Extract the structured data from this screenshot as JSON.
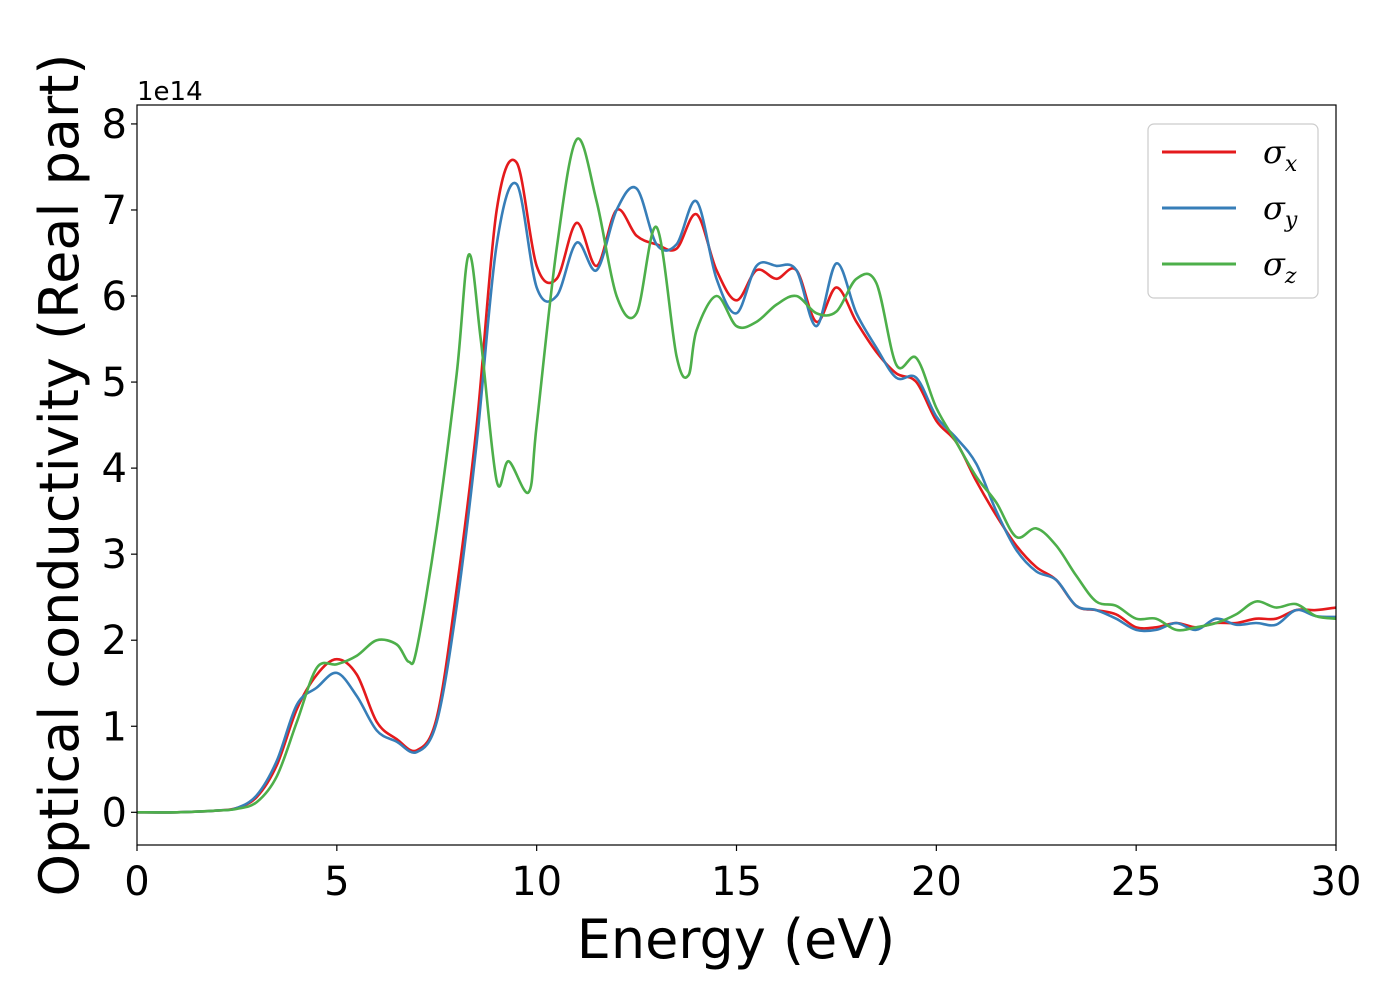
{
  "chart_data": {
    "type": "line",
    "xlabel": "Energy (eV)",
    "ylabel": "Optical conductivity (Real part)",
    "y_offset_label": "1e14",
    "y_scale_exponent": 14,
    "xlim": [
      0,
      30
    ],
    "ylim": [
      -0.38,
      8.22
    ],
    "x_ticks": [
      0,
      5,
      10,
      15,
      20,
      25,
      30
    ],
    "x_tick_labels": [
      "0",
      "5",
      "10",
      "15",
      "20",
      "25",
      "30"
    ],
    "y_ticks": [
      0,
      1,
      2,
      3,
      4,
      5,
      6,
      7,
      8
    ],
    "y_tick_labels": [
      "0",
      "1",
      "2",
      "3",
      "4",
      "5",
      "6",
      "7",
      "8"
    ],
    "grid": false,
    "legend_position": "top-right",
    "series": [
      {
        "name": "σx",
        "base": "σ",
        "sub": "x",
        "color": "#e41a1c",
        "x": [
          0,
          1,
          2,
          2.5,
          3,
          3.5,
          4,
          4.5,
          5,
          5.5,
          6,
          6.5,
          7,
          7.5,
          8,
          8.5,
          9,
          9.5,
          10,
          10.5,
          11,
          11.5,
          12,
          12.5,
          13,
          13.5,
          14,
          14.5,
          15,
          15.5,
          16,
          16.5,
          17,
          17.5,
          18,
          18.5,
          19,
          19.5,
          20,
          20.5,
          21,
          21.5,
          22,
          22.5,
          23,
          23.5,
          24,
          24.5,
          25,
          25.5,
          26,
          26.5,
          27,
          27.5,
          28,
          28.5,
          29,
          29.5,
          30
        ],
        "values": [
          0,
          0,
          0.02,
          0.05,
          0.18,
          0.55,
          1.2,
          1.6,
          1.78,
          1.6,
          1.05,
          0.85,
          0.72,
          1.1,
          2.6,
          4.5,
          7.0,
          7.55,
          6.35,
          6.2,
          6.85,
          6.35,
          7.0,
          6.7,
          6.6,
          6.55,
          6.95,
          6.3,
          5.95,
          6.3,
          6.2,
          6.3,
          5.7,
          6.1,
          5.7,
          5.35,
          5.1,
          5.0,
          4.55,
          4.3,
          3.85,
          3.45,
          3.1,
          2.85,
          2.7,
          2.4,
          2.35,
          2.3,
          2.15,
          2.15,
          2.2,
          2.15,
          2.2,
          2.2,
          2.25,
          2.25,
          2.35,
          2.35,
          2.38
        ]
      },
      {
        "name": "σy",
        "base": "σ",
        "sub": "y",
        "color": "#377eb8",
        "x": [
          0,
          1,
          2,
          2.5,
          3,
          3.5,
          4,
          4.5,
          5,
          5.5,
          6,
          6.5,
          7,
          7.5,
          8,
          8.5,
          9,
          9.5,
          10,
          10.5,
          11,
          11.5,
          12,
          12.5,
          13,
          13.5,
          14,
          14.5,
          15,
          15.5,
          16,
          16.5,
          17,
          17.5,
          18,
          18.5,
          19,
          19.5,
          20,
          20.5,
          21,
          21.5,
          22,
          22.5,
          23,
          23.5,
          24,
          24.5,
          25,
          25.5,
          26,
          26.5,
          27,
          27.5,
          28,
          28.5,
          29,
          29.5,
          30
        ],
        "values": [
          0,
          0,
          0.02,
          0.05,
          0.2,
          0.6,
          1.25,
          1.45,
          1.62,
          1.35,
          0.95,
          0.82,
          0.7,
          1.05,
          2.4,
          4.3,
          6.6,
          7.3,
          6.1,
          6.0,
          6.62,
          6.3,
          7.0,
          7.25,
          6.6,
          6.6,
          7.1,
          6.2,
          5.8,
          6.35,
          6.35,
          6.3,
          5.65,
          6.38,
          5.8,
          5.4,
          5.05,
          5.05,
          4.6,
          4.35,
          4.05,
          3.5,
          3.05,
          2.8,
          2.7,
          2.4,
          2.35,
          2.25,
          2.12,
          2.12,
          2.2,
          2.12,
          2.25,
          2.18,
          2.2,
          2.18,
          2.35,
          2.28,
          2.27
        ]
      },
      {
        "name": "σz",
        "base": "σ",
        "sub": "z",
        "color": "#4daf4a",
        "x": [
          0,
          1,
          2,
          2.5,
          3,
          3.5,
          4,
          4.5,
          5,
          5.5,
          6,
          6.5,
          6.8,
          7,
          7.5,
          8,
          8.3,
          8.6,
          9,
          9.3,
          9.8,
          10,
          10.5,
          11,
          11.5,
          12,
          12.5,
          13,
          13.5,
          13.8,
          14,
          14.5,
          15,
          15.5,
          16,
          16.5,
          17,
          17.5,
          18,
          18.5,
          19,
          19.5,
          20,
          20.5,
          21,
          21.5,
          22,
          22.5,
          23,
          23.5,
          24,
          24.5,
          25,
          25.5,
          26,
          26.5,
          27,
          27.5,
          28,
          28.5,
          29,
          29.5,
          30
        ],
        "values": [
          0,
          0,
          0.02,
          0.04,
          0.12,
          0.42,
          1.05,
          1.68,
          1.72,
          1.82,
          2.0,
          1.95,
          1.75,
          1.9,
          3.3,
          5.1,
          6.48,
          5.5,
          3.85,
          4.08,
          3.72,
          4.5,
          6.55,
          7.82,
          7.1,
          6.0,
          5.8,
          6.8,
          5.3,
          5.08,
          5.6,
          6.0,
          5.65,
          5.7,
          5.9,
          6.0,
          5.8,
          5.82,
          6.2,
          6.15,
          5.2,
          5.28,
          4.7,
          4.3,
          3.9,
          3.6,
          3.2,
          3.3,
          3.1,
          2.75,
          2.45,
          2.4,
          2.25,
          2.25,
          2.12,
          2.15,
          2.2,
          2.3,
          2.45,
          2.38,
          2.42,
          2.28,
          2.25
        ]
      }
    ]
  }
}
